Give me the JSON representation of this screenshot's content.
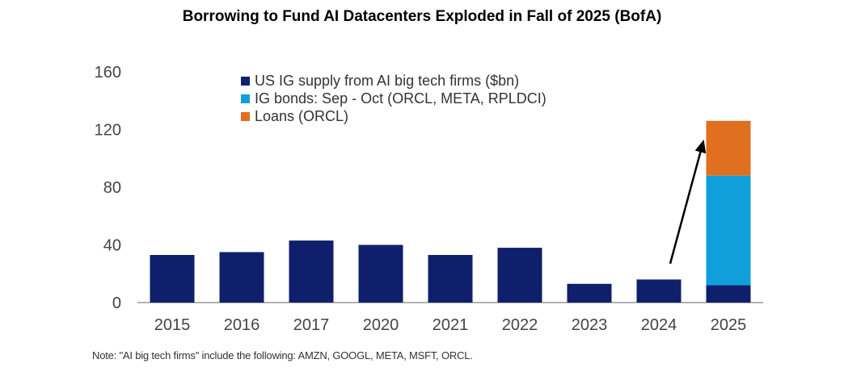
{
  "chart_data": {
    "type": "bar",
    "title": "Borrowing to Fund AI Datacenters Exploded in Fall of 2025 (BofA)",
    "xlabel": "",
    "ylabel": "",
    "ylim": [
      0,
      160
    ],
    "yticks": [
      "0",
      "40",
      "80",
      "120",
      "160"
    ],
    "categories": [
      "2015",
      "2016",
      "2017",
      "2020",
      "2021",
      "2022",
      "2023",
      "2024",
      "2025"
    ],
    "stacked": true,
    "grid": false,
    "legend_position": "top-center",
    "series": [
      {
        "name": "US IG supply from AI big tech firms ($bn)",
        "color": "#0f1f6b",
        "values": [
          33,
          35,
          43,
          40,
          33,
          38,
          13,
          16,
          12
        ]
      },
      {
        "name": "IG bonds: Sep - Oct (ORCL, META, RPLDCI)",
        "color": "#109fdb",
        "values": [
          0,
          0,
          0,
          0,
          0,
          0,
          0,
          0,
          76
        ]
      },
      {
        "name": "Loans (ORCL)",
        "color": "#e06f1f",
        "values": [
          0,
          0,
          0,
          0,
          0,
          0,
          0,
          0,
          38
        ]
      }
    ],
    "annotations": [
      {
        "type": "arrow",
        "from_category": "2024",
        "to_category": "2025",
        "from_value": 27,
        "to_value": 113,
        "color": "#000000"
      }
    ],
    "note": "Note: \"AI big tech firms\" include the following: AMZN, GOOGL, META, MSFT, ORCL."
  }
}
